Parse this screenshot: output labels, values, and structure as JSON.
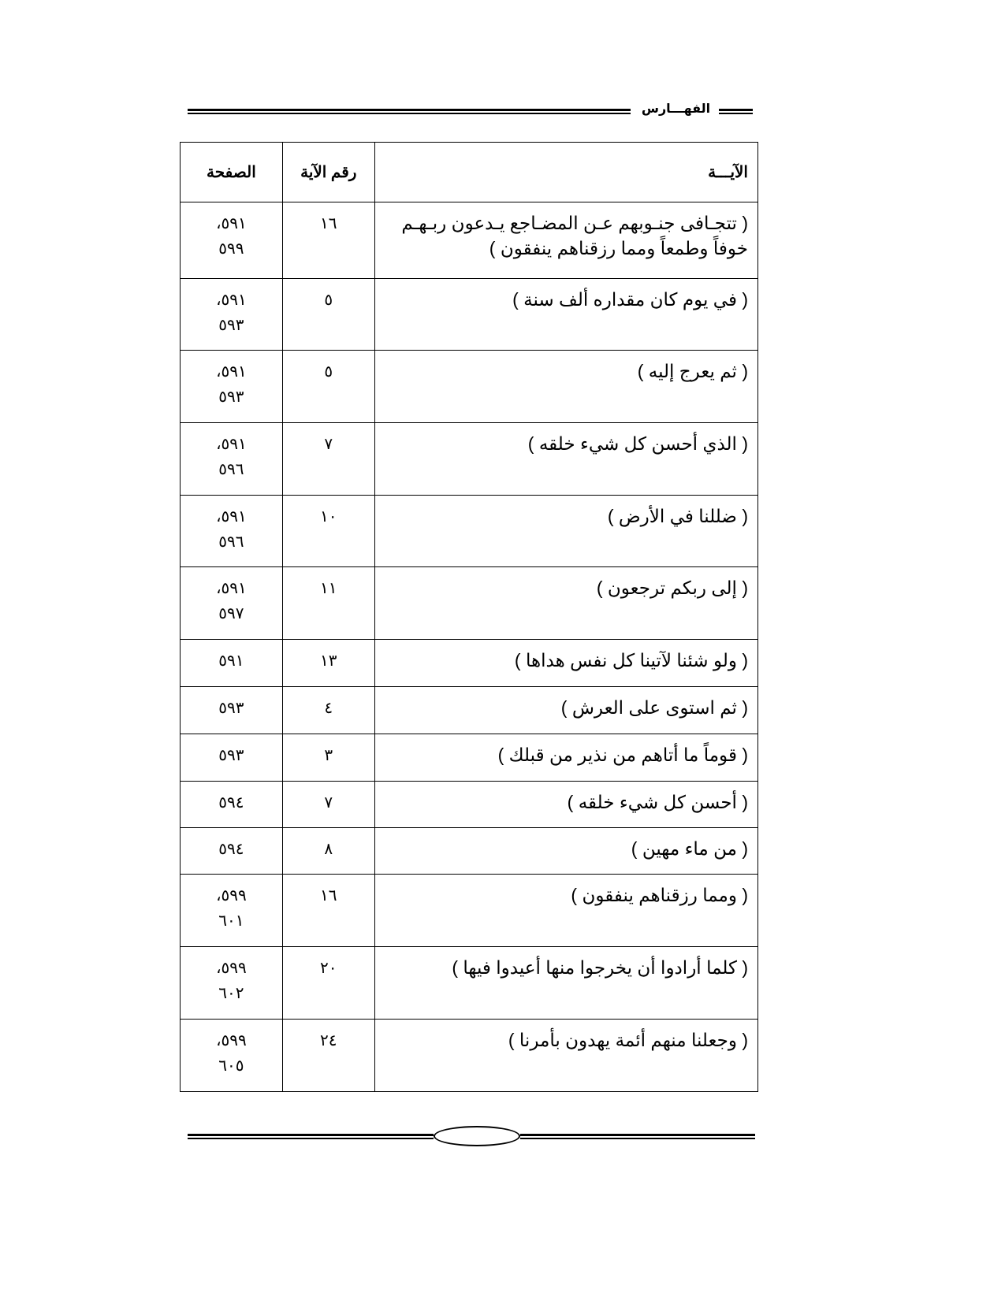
{
  "header": {
    "title": "الفهـــارس"
  },
  "table": {
    "columns": {
      "verse": "الآيـــة",
      "number": "رقم الآية",
      "page": "الصفحة"
    },
    "rows": [
      {
        "verse": "( تتجـافى جنـوبهم عـن المضـاجع يـدعون ربـهـم خوفاً وطمعاً ومما رزقناهم ينفقون )",
        "number": "١٦",
        "page": "٥٩١، ٥٩٩"
      },
      {
        "verse": "( في يوم كان مقداره ألف سنة )",
        "number": "٥",
        "page": "٥٩١، ٥٩٣"
      },
      {
        "verse": "( ثم يعرج إليه )",
        "number": "٥",
        "page": "٥٩١، ٥٩٣"
      },
      {
        "verse": "( الذي أحسن كل شيء خلقه )",
        "number": "٧",
        "page": "٥٩١، ٥٩٦"
      },
      {
        "verse": "( ضللنا في الأرض )",
        "number": "١٠",
        "page": "٥٩١، ٥٩٦"
      },
      {
        "verse": "( إلى ربكم ترجعون )",
        "number": "١١",
        "page": "٥٩١، ٥٩٧"
      },
      {
        "verse": "( ولو شئنا لآتينا كل نفس هداها )",
        "number": "١٣",
        "page": "٥٩١"
      },
      {
        "verse": "( ثم استوى على العرش )",
        "number": "٤",
        "page": "٥٩٣"
      },
      {
        "verse": "( قوماً ما أتاهم من نذير من قبلك )",
        "number": "٣",
        "page": "٥٩٣"
      },
      {
        "verse": "( أحسن كل شيء خلقه )",
        "number": "٧",
        "page": "٥٩٤"
      },
      {
        "verse": "( من ماء مهين )",
        "number": "٨",
        "page": "٥٩٤"
      },
      {
        "verse": "( ومما رزقناهم ينفقون )",
        "number": "١٦",
        "page": "٥٩٩، ٦٠١"
      },
      {
        "verse": "( كلما أرادوا أن يخرجوا منها أعيدوا فيها )",
        "number": "٢٠",
        "page": "٥٩٩، ٦٠٢"
      },
      {
        "verse": "( وجعلنا منهم أئمة يهدون بأمرنا )",
        "number": "٢٤",
        "page": "٥٩٩، ٦٠٥"
      }
    ]
  }
}
